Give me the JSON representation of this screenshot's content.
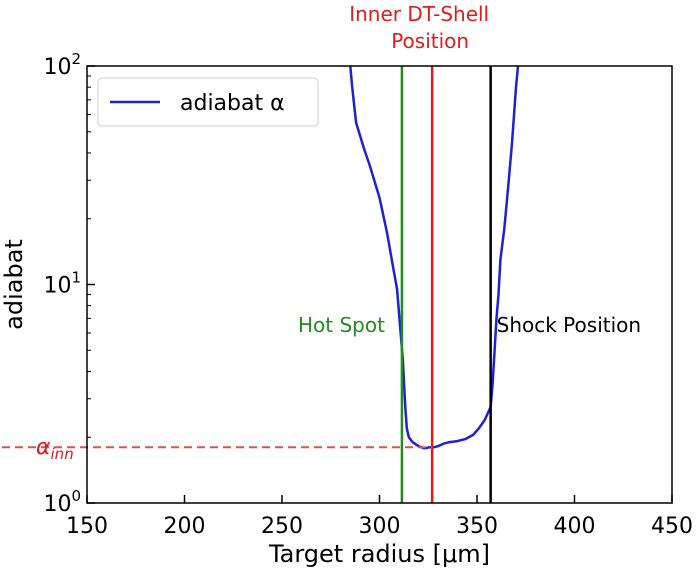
{
  "chart_data": {
    "type": "line",
    "xlabel": "Target radius [μm]",
    "ylabel": "adiabat",
    "xlim": [
      150,
      450
    ],
    "ylim": [
      1,
      100
    ],
    "yscale": "log",
    "x_ticks": [
      150,
      200,
      250,
      300,
      350,
      400,
      450
    ],
    "x_tick_labels": [
      "150",
      "200",
      "250",
      "300",
      "350",
      "400",
      "450"
    ],
    "y_ticks": [
      1,
      10,
      100
    ],
    "y_tick_base": "10",
    "y_tick_exponents": [
      "0",
      "1",
      "2"
    ],
    "grid": false,
    "legend": {
      "position": "top-left",
      "entries": [
        "adiabat α"
      ]
    },
    "series": [
      {
        "name": "adiabat α",
        "color": "#1f1fd6",
        "x": [
          285,
          286,
          288,
          292,
          295,
          300,
          304,
          307,
          309,
          310.5,
          312,
          312.8,
          313.3,
          314,
          315,
          317,
          320,
          323,
          326,
          328,
          330,
          333,
          336,
          340,
          344,
          348,
          351,
          354,
          357,
          358,
          359,
          360,
          361,
          362,
          364,
          366,
          368,
          370,
          371
        ],
        "y": [
          100,
          80,
          55,
          42,
          35,
          25,
          17,
          12,
          9.5,
          6.5,
          4.5,
          3.2,
          2.7,
          2.2,
          2.0,
          1.9,
          1.82,
          1.78,
          1.8,
          1.8,
          1.82,
          1.87,
          1.9,
          1.92,
          1.96,
          2.05,
          2.2,
          2.4,
          2.75,
          3.5,
          5,
          7,
          9,
          13,
          18,
          28,
          45,
          80,
          100
        ]
      }
    ],
    "vertical_lines": [
      {
        "x": 311.5,
        "label": "Hot Spot",
        "color": "#228B22"
      },
      {
        "x": 327,
        "label": "Inner DT-Shell\nPosition",
        "color": "#e01b1b"
      },
      {
        "x": 357,
        "label": "Shock Position",
        "color": "#000000"
      }
    ],
    "horizontal_line": {
      "y": 1.8,
      "x_end": 327,
      "label": "α",
      "label_subscript": "inn",
      "color": "#e05050",
      "style": "dashed"
    }
  }
}
